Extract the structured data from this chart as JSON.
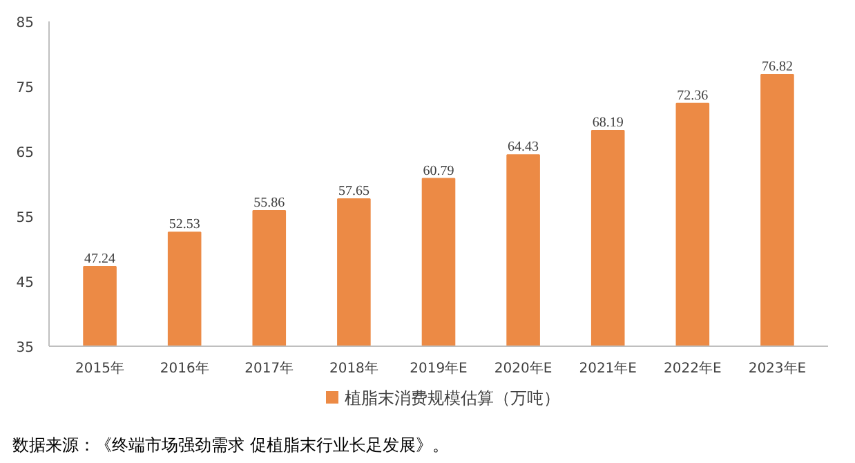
{
  "chart_data": {
    "type": "bar",
    "categories": [
      "2015年",
      "2016年",
      "2017年",
      "2018年",
      "2019年E",
      "2020年E",
      "2021年E",
      "2022年E",
      "2023年E"
    ],
    "series": [
      {
        "name": "植脂末消费规模估算（万吨）",
        "color": "#ec8a45",
        "values": [
          47.24,
          52.53,
          55.86,
          57.65,
          60.79,
          64.43,
          68.19,
          72.36,
          76.82
        ]
      }
    ],
    "ylim": [
      35,
      85
    ],
    "yticks": [
      35,
      45,
      55,
      65,
      75,
      85
    ],
    "data_labels": true,
    "grid": false,
    "legend": "bottom",
    "annotations": [
      "数据来源：《终端市场强劲需求 促植脂末行业长足发展》。"
    ]
  }
}
